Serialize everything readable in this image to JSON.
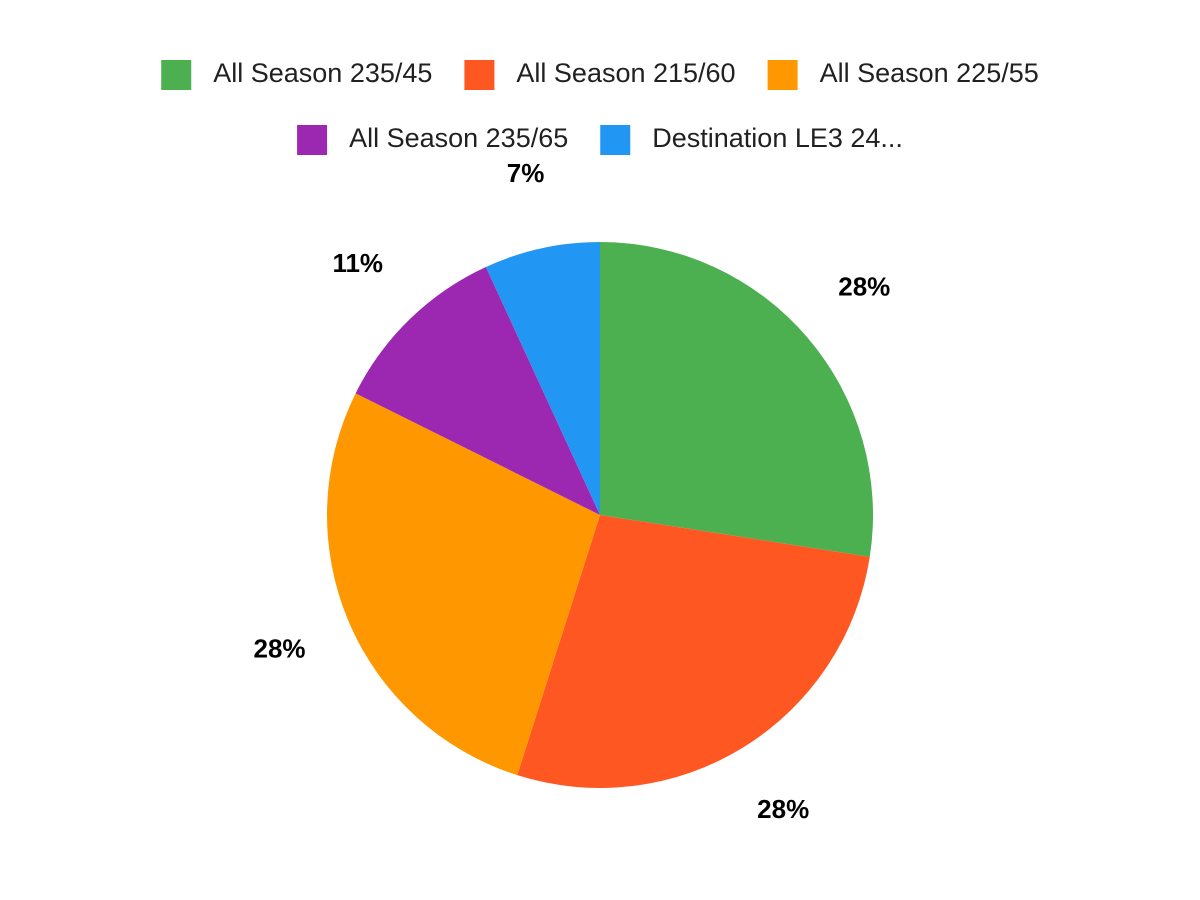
{
  "chart_data": {
    "type": "pie",
    "categories": [
      "All Season 235/45",
      "All Season 215/60",
      "All Season 225/55",
      "All Season 235/65",
      "Destination LE3 24..."
    ],
    "values": [
      28,
      28,
      28,
      11,
      7
    ],
    "value_labels": [
      "28%",
      "28%",
      "28%",
      "11%",
      "7%"
    ],
    "colors": [
      "#4caf50",
      "#ff5722",
      "#ff9800",
      "#9c27b0",
      "#2196f3"
    ],
    "legend": "top"
  }
}
